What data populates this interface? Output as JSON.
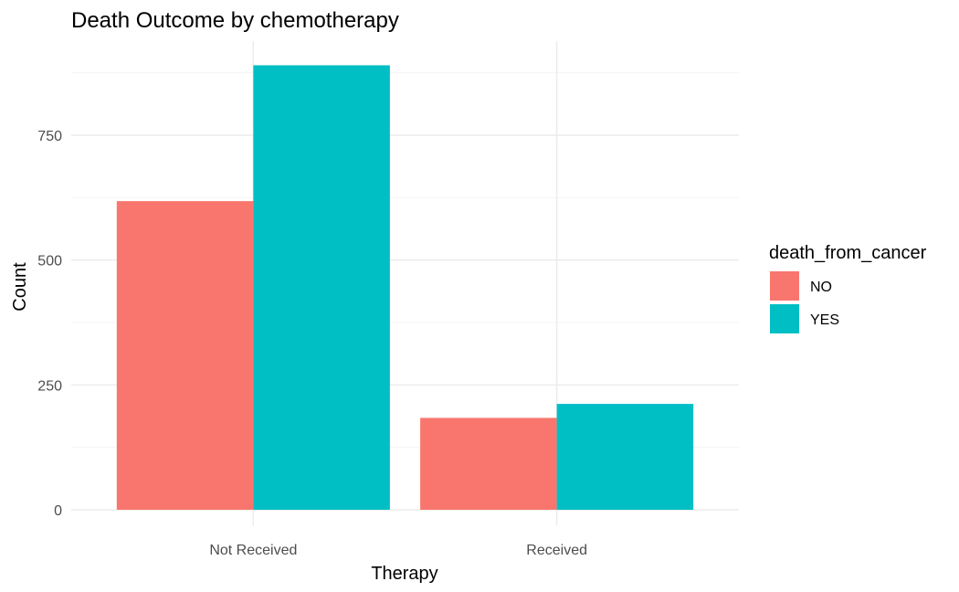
{
  "chart_data": {
    "type": "bar",
    "title": "Death Outcome by chemotherapy",
    "xlabel": "Therapy",
    "ylabel": "Count",
    "categories": [
      "Not Received",
      "Received"
    ],
    "series": [
      {
        "name": "NO",
        "values": [
          618,
          184
        ],
        "color": "#F8766D"
      },
      {
        "name": "YES",
        "values": [
          890,
          212
        ],
        "color": "#00BFC4"
      }
    ],
    "ylim": [
      0,
      935
    ],
    "yticks": [
      0,
      250,
      500,
      750
    ],
    "ytick_labels": [
      "0",
      "250",
      "500",
      "750"
    ],
    "grid": true,
    "legend": {
      "title": "death_from_cancer",
      "position": "right"
    }
  }
}
